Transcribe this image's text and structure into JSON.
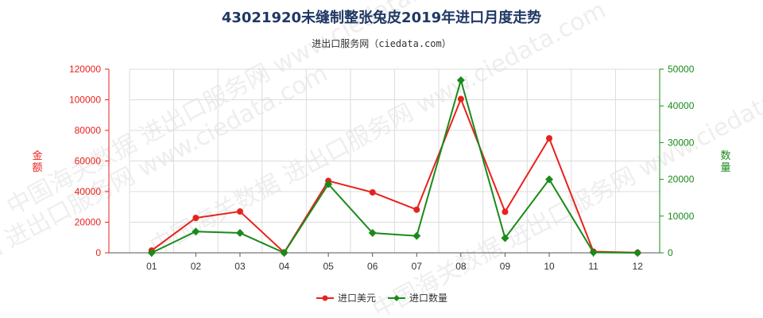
{
  "chart_data": {
    "type": "line",
    "title": "43021920未缝制整张兔皮2019年进口月度走势",
    "subtitle": "进出口服务网（ciedata.com）",
    "categories": [
      "01",
      "02",
      "03",
      "04",
      "05",
      "06",
      "07",
      "08",
      "09",
      "10",
      "11",
      "12"
    ],
    "left_axis": {
      "label": "金额",
      "ylim": [
        0,
        120000
      ],
      "ticks": [
        "0",
        "20000",
        "40000",
        "60000",
        "80000",
        "100000",
        "120000"
      ]
    },
    "right_axis": {
      "label": "数量",
      "ylim": [
        0,
        50000
      ],
      "ticks": [
        "0",
        "10000",
        "20000",
        "30000",
        "40000",
        "50000"
      ]
    },
    "series": [
      {
        "name": "进口美元",
        "axis": "left",
        "color": "#e8211d",
        "marker": "circle",
        "values": [
          1500,
          22800,
          27000,
          200,
          47000,
          39500,
          28200,
          100500,
          26800,
          74800,
          800,
          100
        ]
      },
      {
        "name": "进口数量",
        "axis": "right",
        "color": "#1a8a1a",
        "marker": "diamond",
        "values": [
          0,
          5800,
          5400,
          0,
          18700,
          5400,
          4600,
          47000,
          4000,
          20000,
          100,
          0
        ]
      }
    ],
    "grid": true,
    "legend": "bottom-center",
    "watermark": "中国海关数据 进出口服务网 www.ciedata.com"
  }
}
